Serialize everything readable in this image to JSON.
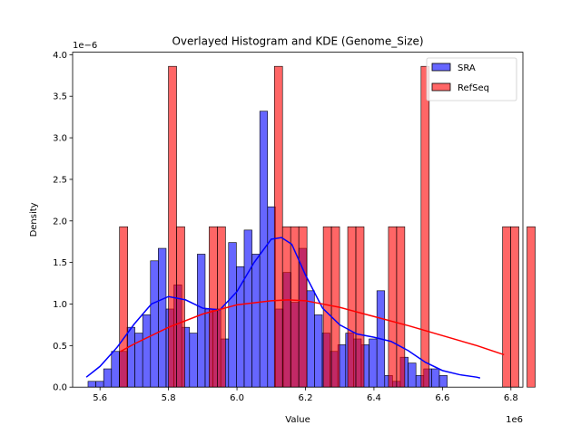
{
  "chart_data": {
    "type": "bar",
    "title": "Overlayed Histogram and KDE (Genome_Size)",
    "xlabel": "Value",
    "ylabel": "Density",
    "x_offset_text": "1e6",
    "y_offset_text": "1e−6",
    "xlim": [
      5.52,
      6.835
    ],
    "ylim": [
      0,
      4.03
    ],
    "xticks": [
      5.6,
      5.8,
      6.0,
      6.2,
      6.4,
      6.6,
      6.8
    ],
    "xtick_labels": [
      "5.6",
      "5.8",
      "6.0",
      "6.2",
      "6.4",
      "6.6",
      "6.8"
    ],
    "yticks": [
      0.0,
      0.5,
      1.0,
      1.5,
      2.0,
      2.5,
      3.0,
      3.5,
      4.0
    ],
    "ytick_labels": [
      "0.0",
      "0.5",
      "1.0",
      "1.5",
      "2.0",
      "2.5",
      "3.0",
      "3.5",
      "4.0"
    ],
    "legend": {
      "position": "top-right",
      "entries": [
        "SRA",
        "RefSeq"
      ]
    },
    "colors": {
      "sra": "#0000ff",
      "refseq": "#ff0000",
      "overlap": "#b40058"
    },
    "series": [
      {
        "name": "SRA",
        "kind": "histogram",
        "bin_start": 5.565,
        "bin_width": 0.0228,
        "values": [
          0.07,
          0.07,
          0.22,
          0.43,
          0.43,
          0.72,
          0.65,
          0.87,
          1.52,
          1.67,
          0.94,
          1.23,
          0.72,
          0.65,
          1.6,
          0.94,
          0.94,
          0.58,
          1.74,
          1.45,
          1.89,
          1.6,
          3.32,
          2.17,
          0.94,
          1.38,
          1.02,
          1.67,
          1.16,
          0.87,
          0.65,
          0.43,
          0.51,
          0.65,
          0.58,
          0.51,
          0.58,
          1.16,
          0.14,
          0.07,
          0.36,
          0.29,
          0.14,
          0.22,
          0.22,
          0.14
        ]
      },
      {
        "name": "RefSeq",
        "kind": "histogram",
        "bin_start": 5.657,
        "bin_width": 0.0238,
        "values": [
          1.93,
          0,
          0,
          0,
          0,
          0,
          3.86,
          1.93,
          0,
          0,
          0,
          1.93,
          1.93,
          0,
          0,
          0,
          0,
          0,
          0,
          3.86,
          1.93,
          1.93,
          1.93,
          0,
          0,
          1.93,
          1.93,
          0,
          1.93,
          1.93,
          0,
          0,
          0,
          1.93,
          1.93,
          0,
          0,
          3.86,
          0,
          0,
          0,
          0,
          0,
          0,
          0,
          0,
          0,
          1.93,
          1.93,
          0,
          1.93
        ]
      },
      {
        "name": "SRA KDE",
        "kind": "line",
        "x": [
          5.56,
          5.6,
          5.65,
          5.7,
          5.75,
          5.8,
          5.85,
          5.9,
          5.95,
          6.0,
          6.05,
          6.1,
          6.13,
          6.16,
          6.2,
          6.25,
          6.3,
          6.35,
          6.4,
          6.45,
          6.5,
          6.55,
          6.6,
          6.65,
          6.7,
          6.71
        ],
        "y": [
          0.12,
          0.25,
          0.48,
          0.76,
          1.0,
          1.09,
          1.05,
          0.95,
          0.93,
          1.15,
          1.5,
          1.78,
          1.8,
          1.72,
          1.35,
          0.95,
          0.75,
          0.64,
          0.6,
          0.55,
          0.44,
          0.3,
          0.2,
          0.15,
          0.12,
          0.11
        ]
      },
      {
        "name": "RefSeq KDE",
        "kind": "line",
        "x": [
          5.66,
          5.7,
          5.8,
          5.9,
          6.0,
          6.1,
          6.15,
          6.2,
          6.3,
          6.4,
          6.5,
          6.6,
          6.7,
          6.78
        ],
        "y": [
          0.43,
          0.52,
          0.72,
          0.88,
          0.99,
          1.04,
          1.05,
          1.04,
          0.96,
          0.85,
          0.74,
          0.62,
          0.5,
          0.39
        ]
      }
    ]
  }
}
